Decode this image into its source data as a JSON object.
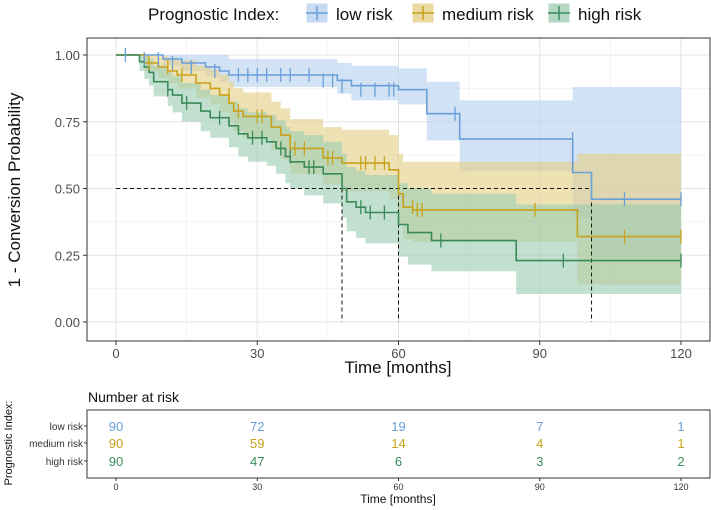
{
  "chart_data": [
    {
      "type": "line",
      "subtype": "kaplan-meier",
      "title": "",
      "xlabel": "Time [months]",
      "ylabel": "1 - Conversion Probability",
      "xlim": [
        0,
        120
      ],
      "ylim": [
        0,
        1
      ],
      "x_ticks": [
        0,
        30,
        60,
        90,
        120
      ],
      "y_ticks": [
        0.0,
        0.25,
        0.5,
        0.75,
        1.0
      ],
      "y_tick_labels": [
        "0.00",
        "0.25",
        "0.50",
        "0.75",
        "1.00"
      ],
      "grid": true,
      "legend": {
        "title": "Prognostic Index:",
        "position": "top",
        "entries": [
          "low risk",
          "medium risk",
          "high risk"
        ]
      },
      "colors": {
        "low": "#6a9fd8",
        "medium": "#c7a21a",
        "high": "#3a8a5a",
        "grid": "#e6e6e6",
        "axis": "#333333"
      },
      "median_lines": [
        {
          "series": "high risk",
          "x": 48,
          "y": 0.5
        },
        {
          "series": "medium risk",
          "x": 60,
          "y": 0.5
        },
        {
          "series": "low risk",
          "x": 101,
          "y": 0.5
        }
      ],
      "series": [
        {
          "name": "low risk",
          "color": "#6a9fd8",
          "steps": [
            [
              0,
              1.0
            ],
            [
              10,
              0.985
            ],
            [
              14,
              0.97
            ],
            [
              19,
              0.955
            ],
            [
              22,
              0.94
            ],
            [
              24,
              0.925
            ],
            [
              47,
              0.905
            ],
            [
              50,
              0.885
            ],
            [
              60,
              0.87
            ],
            [
              66,
              0.78
            ],
            [
              73,
              0.685
            ],
            [
              97,
              0.56
            ],
            [
              101,
              0.46
            ],
            [
              120,
              0.46
            ]
          ],
          "lower": [
            [
              0,
              1.0
            ],
            [
              10,
              0.96
            ],
            [
              14,
              0.94
            ],
            [
              19,
              0.92
            ],
            [
              22,
              0.9
            ],
            [
              24,
              0.88
            ],
            [
              47,
              0.855
            ],
            [
              50,
              0.83
            ],
            [
              60,
              0.815
            ],
            [
              66,
              0.68
            ],
            [
              73,
              0.565
            ],
            [
              97,
              0.39
            ],
            [
              101,
              0.24
            ],
            [
              120,
              0.24
            ]
          ],
          "upper": [
            [
              0,
              1.0
            ],
            [
              10,
              1.0
            ],
            [
              14,
              1.0
            ],
            [
              19,
              1.0
            ],
            [
              22,
              1.0
            ],
            [
              24,
              0.985
            ],
            [
              47,
              0.97
            ],
            [
              50,
              0.96
            ],
            [
              60,
              0.95
            ],
            [
              66,
              0.9
            ],
            [
              73,
              0.83
            ],
            [
              97,
              0.88
            ],
            [
              101,
              0.88
            ],
            [
              120,
              0.88
            ]
          ],
          "censors": [
            [
              2,
              1.0
            ],
            [
              6,
              0.985
            ],
            [
              9,
              0.985
            ],
            [
              12,
              0.97
            ],
            [
              16,
              0.955
            ],
            [
              21,
              0.94
            ],
            [
              26,
              0.925
            ],
            [
              28,
              0.925
            ],
            [
              30,
              0.925
            ],
            [
              32,
              0.925
            ],
            [
              35,
              0.925
            ],
            [
              37,
              0.925
            ],
            [
              41,
              0.925
            ],
            [
              44,
              0.905
            ],
            [
              46,
              0.905
            ],
            [
              48,
              0.885
            ],
            [
              52,
              0.87
            ],
            [
              55,
              0.87
            ],
            [
              58,
              0.87
            ],
            [
              59,
              0.87
            ],
            [
              72,
              0.78
            ],
            [
              97,
              0.685
            ],
            [
              108,
              0.46
            ],
            [
              120,
              0.46
            ]
          ]
        },
        {
          "name": "medium risk",
          "color": "#c7a21a",
          "steps": [
            [
              0,
              1.0
            ],
            [
              6,
              0.97
            ],
            [
              9,
              0.955
            ],
            [
              11,
              0.94
            ],
            [
              13,
              0.925
            ],
            [
              17,
              0.895
            ],
            [
              20,
              0.875
            ],
            [
              22,
              0.85
            ],
            [
              24,
              0.82
            ],
            [
              25,
              0.79
            ],
            [
              27,
              0.77
            ],
            [
              33,
              0.73
            ],
            [
              35,
              0.7
            ],
            [
              37,
              0.65
            ],
            [
              44,
              0.615
            ],
            [
              48,
              0.595
            ],
            [
              58,
              0.57
            ],
            [
              60,
              0.48
            ],
            [
              61,
              0.43
            ],
            [
              63,
              0.42
            ],
            [
              98,
              0.32
            ],
            [
              120,
              0.32
            ]
          ],
          "lower": [
            [
              0,
              1.0
            ],
            [
              6,
              0.94
            ],
            [
              9,
              0.915
            ],
            [
              11,
              0.895
            ],
            [
              13,
              0.875
            ],
            [
              17,
              0.84
            ],
            [
              20,
              0.815
            ],
            [
              22,
              0.785
            ],
            [
              24,
              0.75
            ],
            [
              25,
              0.715
            ],
            [
              27,
              0.69
            ],
            [
              33,
              0.645
            ],
            [
              35,
              0.61
            ],
            [
              37,
              0.555
            ],
            [
              44,
              0.515
            ],
            [
              48,
              0.49
            ],
            [
              58,
              0.46
            ],
            [
              60,
              0.365
            ],
            [
              61,
              0.31
            ],
            [
              63,
              0.3
            ],
            [
              98,
              0.14
            ],
            [
              120,
              0.14
            ]
          ],
          "upper": [
            [
              0,
              1.0
            ],
            [
              6,
              1.0
            ],
            [
              9,
              0.995
            ],
            [
              11,
              0.99
            ],
            [
              13,
              0.98
            ],
            [
              17,
              0.96
            ],
            [
              20,
              0.945
            ],
            [
              22,
              0.925
            ],
            [
              24,
              0.9
            ],
            [
              25,
              0.875
            ],
            [
              27,
              0.86
            ],
            [
              33,
              0.825
            ],
            [
              35,
              0.8
            ],
            [
              37,
              0.76
            ],
            [
              44,
              0.73
            ],
            [
              48,
              0.72
            ],
            [
              58,
              0.7
            ],
            [
              60,
              0.63
            ],
            [
              61,
              0.6
            ],
            [
              63,
              0.6
            ],
            [
              98,
              0.63
            ],
            [
              120,
              0.63
            ]
          ],
          "censors": [
            [
              7,
              0.97
            ],
            [
              11,
              0.955
            ],
            [
              14,
              0.925
            ],
            [
              24,
              0.85
            ],
            [
              26,
              0.79
            ],
            [
              30,
              0.77
            ],
            [
              31,
              0.77
            ],
            [
              38,
              0.65
            ],
            [
              40,
              0.65
            ],
            [
              45,
              0.615
            ],
            [
              46,
              0.615
            ],
            [
              52,
              0.595
            ],
            [
              53,
              0.595
            ],
            [
              55,
              0.595
            ],
            [
              57,
              0.595
            ],
            [
              63,
              0.43
            ],
            [
              64,
              0.42
            ],
            [
              65,
              0.42
            ],
            [
              89,
              0.42
            ],
            [
              108,
              0.32
            ],
            [
              120,
              0.32
            ]
          ]
        },
        {
          "name": "high risk",
          "color": "#3a8a5a",
          "steps": [
            [
              0,
              1.0
            ],
            [
              5,
              0.975
            ],
            [
              6,
              0.955
            ],
            [
              7,
              0.935
            ],
            [
              8,
              0.9
            ],
            [
              11,
              0.87
            ],
            [
              12,
              0.85
            ],
            [
              14,
              0.82
            ],
            [
              18,
              0.79
            ],
            [
              20,
              0.765
            ],
            [
              24,
              0.735
            ],
            [
              26,
              0.705
            ],
            [
              28,
              0.69
            ],
            [
              32,
              0.675
            ],
            [
              34,
              0.65
            ],
            [
              36,
              0.62
            ],
            [
              37,
              0.6
            ],
            [
              40,
              0.58
            ],
            [
              44,
              0.555
            ],
            [
              48,
              0.5
            ],
            [
              49,
              0.45
            ],
            [
              51,
              0.43
            ],
            [
              53,
              0.41
            ],
            [
              60,
              0.365
            ],
            [
              62,
              0.335
            ],
            [
              67,
              0.305
            ],
            [
              85,
              0.23
            ],
            [
              120,
              0.23
            ]
          ],
          "lower": [
            [
              0,
              1.0
            ],
            [
              5,
              0.94
            ],
            [
              6,
              0.91
            ],
            [
              7,
              0.885
            ],
            [
              8,
              0.845
            ],
            [
              11,
              0.81
            ],
            [
              12,
              0.785
            ],
            [
              14,
              0.75
            ],
            [
              18,
              0.715
            ],
            [
              20,
              0.69
            ],
            [
              24,
              0.655
            ],
            [
              26,
              0.62
            ],
            [
              28,
              0.6
            ],
            [
              32,
              0.585
            ],
            [
              34,
              0.555
            ],
            [
              36,
              0.52
            ],
            [
              37,
              0.5
            ],
            [
              40,
              0.475
            ],
            [
              44,
              0.445
            ],
            [
              48,
              0.39
            ],
            [
              49,
              0.34
            ],
            [
              51,
              0.315
            ],
            [
              53,
              0.295
            ],
            [
              60,
              0.245
            ],
            [
              62,
              0.215
            ],
            [
              67,
              0.19
            ],
            [
              85,
              0.105
            ],
            [
              120,
              0.105
            ]
          ],
          "upper": [
            [
              0,
              1.0
            ],
            [
              5,
              1.0
            ],
            [
              6,
              0.995
            ],
            [
              7,
              0.985
            ],
            [
              8,
              0.96
            ],
            [
              11,
              0.935
            ],
            [
              12,
              0.92
            ],
            [
              14,
              0.895
            ],
            [
              18,
              0.87
            ],
            [
              20,
              0.85
            ],
            [
              24,
              0.825
            ],
            [
              26,
              0.8
            ],
            [
              28,
              0.785
            ],
            [
              32,
              0.775
            ],
            [
              34,
              0.755
            ],
            [
              36,
              0.73
            ],
            [
              37,
              0.715
            ],
            [
              40,
              0.7
            ],
            [
              44,
              0.675
            ],
            [
              48,
              0.63
            ],
            [
              49,
              0.58
            ],
            [
              51,
              0.565
            ],
            [
              53,
              0.55
            ],
            [
              60,
              0.52
            ],
            [
              62,
              0.5
            ],
            [
              67,
              0.48
            ],
            [
              85,
              0.44
            ],
            [
              120,
              0.44
            ]
          ],
          "censors": [
            [
              11,
              0.87
            ],
            [
              15,
              0.82
            ],
            [
              22,
              0.765
            ],
            [
              29,
              0.69
            ],
            [
              31,
              0.69
            ],
            [
              35,
              0.65
            ],
            [
              37,
              0.62
            ],
            [
              41,
              0.58
            ],
            [
              42,
              0.58
            ],
            [
              52,
              0.43
            ],
            [
              54,
              0.41
            ],
            [
              57,
              0.41
            ],
            [
              69,
              0.305
            ],
            [
              95,
              0.23
            ],
            [
              120,
              0.23
            ]
          ]
        }
      ]
    },
    {
      "type": "table",
      "title": "Number at risk",
      "xlabel": "Time [months]",
      "ylabel": "Prognostic Index:",
      "x_ticks": [
        0,
        30,
        60,
        90,
        120
      ],
      "rows": [
        {
          "name": "low risk",
          "color": "#6a9fd8",
          "values": [
            90,
            72,
            19,
            7,
            1
          ]
        },
        {
          "name": "medium risk",
          "color": "#c7a21a",
          "values": [
            90,
            59,
            14,
            4,
            1
          ]
        },
        {
          "name": "high risk",
          "color": "#3a8a5a",
          "values": [
            90,
            47,
            6,
            3,
            2
          ]
        }
      ]
    }
  ]
}
